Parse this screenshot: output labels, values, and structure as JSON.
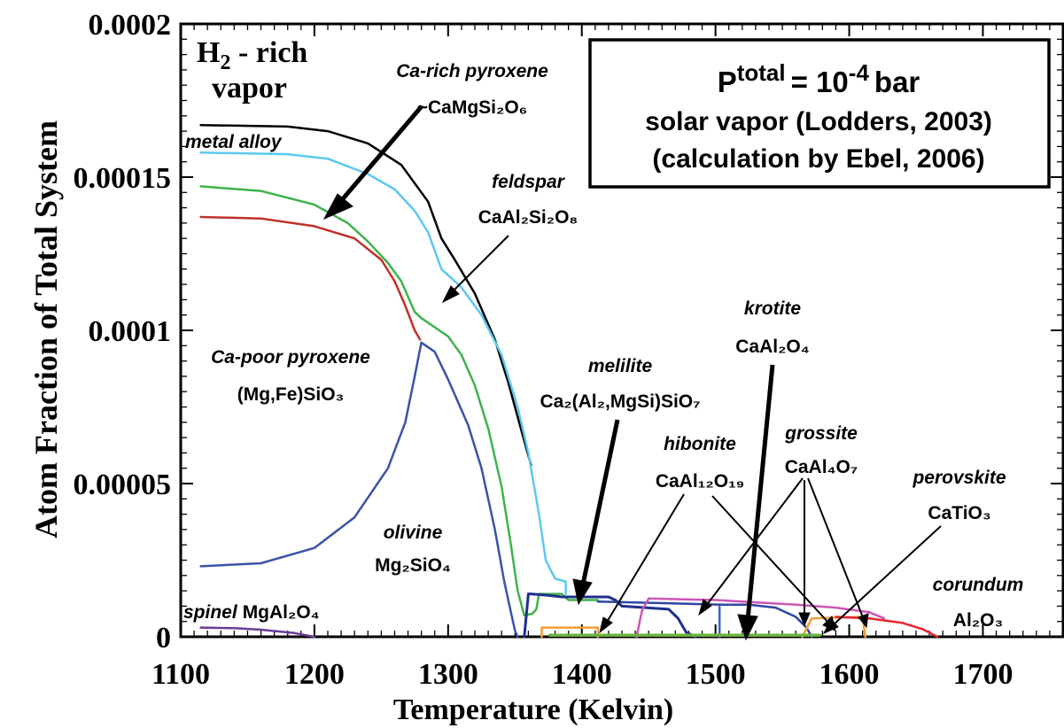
{
  "chart_data": {
    "type": "line",
    "xlabel": "Temperature (Kelvin)",
    "ylabel": "Atom Fraction of Total System",
    "xlim": [
      1100,
      1760
    ],
    "ylim": [
      0,
      0.0002
    ],
    "xticks": [
      "1100",
      "1200",
      "1300",
      "1400",
      "1500",
      "1600",
      "1700"
    ],
    "yticks": [
      "0",
      "0.00005",
      "0.0001",
      "0.00015",
      "0.0002"
    ],
    "grid": false,
    "box": {
      "line1_base": "P",
      "line1_sup": "total",
      "line1_eq": "= 10",
      "line1_exp": "-4",
      "line1_unit": "bar",
      "line2": "solar vapor  (Lodders, 2003)",
      "line3": "(calculation by Ebel, 2006)"
    },
    "vapor_label": {
      "h": "H",
      "sub": "2",
      "rest": " - rich",
      "line2": "vapor"
    },
    "labels": {
      "metal_alloy": "metal alloy",
      "ca_rich_name": "Ca-rich pyroxene",
      "ca_rich_formula": "~CaMgSi₂O₆",
      "feldspar_name": "feldspar",
      "feldspar_formula": "CaAl₂Si₂O₈",
      "ca_poor_name": "Ca-poor pyroxene",
      "ca_poor_formula": "(Mg,Fe)SiO₃",
      "olivine_name": "olivine",
      "olivine_formula": "Mg₂SiO₄",
      "spinel_name": "spinel",
      "spinel_formula": "MgAl₂O₄",
      "melilite_name": "melilite",
      "melilite_formula": "Ca₂(Al₂,MgSi)SiO₇",
      "krotite_name": "krotite",
      "krotite_formula": "CaAl₂O₄",
      "hibonite_name": "hibonite",
      "hibonite_formula": "CaAl₁₂O₁₉",
      "grossite_name": "grossite",
      "grossite_formula": "CaAl₄O₇",
      "perovskite_name": "perovskite",
      "perovskite_formula": "CaTiO₃",
      "corundum_name": "corundum",
      "corundum_formula": "Al₂O₃"
    },
    "series": [
      {
        "color": "#000000",
        "width": 2.5,
        "points": [
          [
            1115,
            0.000167
          ],
          [
            1180,
            0.0001665
          ],
          [
            1210,
            0.000165
          ],
          [
            1240,
            0.000161
          ],
          [
            1265,
            0.000154
          ],
          [
            1285,
            0.000142
          ],
          [
            1295,
            0.00013
          ],
          [
            1305,
            0.000123
          ],
          [
            1320,
            0.000112
          ],
          [
            1335,
            9.7e-05
          ],
          [
            1345,
            8.3e-05
          ],
          [
            1355,
            6.7e-05
          ],
          [
            1362,
            5.6e-05
          ]
        ]
      },
      {
        "color": "#5bc8f0",
        "width": 2.5,
        "points": [
          [
            1115,
            0.000158
          ],
          [
            1180,
            0.0001575
          ],
          [
            1210,
            0.000156
          ],
          [
            1240,
            0.000151
          ],
          [
            1260,
            0.000146
          ],
          [
            1275,
            0.000139
          ],
          [
            1285,
            0.000132
          ],
          [
            1295,
            0.00012
          ],
          [
            1310,
            0.000114
          ],
          [
            1325,
            0.000105
          ],
          [
            1340,
            9.2e-05
          ],
          [
            1352,
            7.5e-05
          ],
          [
            1360,
            6e-05
          ],
          [
            1368,
            4e-05
          ],
          [
            1373,
            2.5e-05
          ],
          [
            1380,
            1.9e-05
          ],
          [
            1388,
            1.8e-05
          ],
          [
            1388,
            1.4e-05
          ]
        ]
      },
      {
        "color": "#3db34a",
        "width": 2.5,
        "points": [
          [
            1115,
            0.000147
          ],
          [
            1160,
            0.0001455
          ],
          [
            1200,
            0.000141
          ],
          [
            1225,
            0.000135
          ],
          [
            1240,
            0.000129
          ],
          [
            1255,
            0.000122
          ],
          [
            1265,
            0.000116
          ],
          [
            1275,
            0.000106
          ],
          [
            1280,
            0.000104
          ],
          [
            1290,
            0.000101
          ],
          [
            1300,
            9.8e-05
          ],
          [
            1310,
            9.2e-05
          ],
          [
            1320,
            8.2e-05
          ],
          [
            1330,
            6.8e-05
          ],
          [
            1340,
            4.9e-05
          ],
          [
            1347,
            3e-05
          ],
          [
            1352,
            1.5e-05
          ],
          [
            1357,
            7e-06
          ],
          [
            1363,
            7.5e-06
          ],
          [
            1366,
            9e-06
          ],
          [
            1368,
            1.4e-05
          ],
          [
            1385,
            1.4e-05
          ],
          [
            1390,
            1.2e-05
          ],
          [
            1412,
            1.2e-05
          ]
        ]
      },
      {
        "color": "#c0302b",
        "width": 2.5,
        "points": [
          [
            1115,
            0.000137
          ],
          [
            1160,
            0.0001365
          ],
          [
            1200,
            0.000134
          ],
          [
            1230,
            0.00013
          ],
          [
            1250,
            0.000123
          ],
          [
            1260,
            0.000116
          ],
          [
            1268,
            0.000108
          ],
          [
            1275,
            0.0001
          ],
          [
            1279,
            9.7e-05
          ]
        ]
      },
      {
        "color": "#3a52a8",
        "width": 2.5,
        "points": [
          [
            1115,
            2.3e-05
          ],
          [
            1160,
            2.4e-05
          ],
          [
            1200,
            2.9e-05
          ],
          [
            1230,
            3.9e-05
          ],
          [
            1255,
            5.5e-05
          ],
          [
            1268,
            7e-05
          ],
          [
            1275,
            8.5e-05
          ],
          [
            1280,
            9.6e-05
          ],
          [
            1290,
            9.3e-05
          ],
          [
            1300,
            8.4e-05
          ],
          [
            1315,
            6.9e-05
          ],
          [
            1325,
            5.5e-05
          ],
          [
            1335,
            3.5e-05
          ],
          [
            1342,
            1.8e-05
          ],
          [
            1347,
            8e-06
          ],
          [
            1350,
            2e-06
          ],
          [
            1352,
            0
          ]
        ]
      },
      {
        "color": "#6a3d9a",
        "width": 2.5,
        "points": [
          [
            1115,
            3e-06
          ],
          [
            1140,
            2.8e-06
          ],
          [
            1160,
            2.3e-06
          ],
          [
            1185,
            1.2e-06
          ],
          [
            1200,
            0
          ]
        ]
      },
      {
        "color": "#1f2f8c",
        "width": 3,
        "points": [
          [
            1357,
            0
          ],
          [
            1360,
            1.4e-05
          ],
          [
            1362,
            1.4e-05
          ],
          [
            1375,
            1.35e-05
          ],
          [
            1385,
            1.3e-05
          ],
          [
            1420,
            1.3e-05
          ],
          [
            1425,
            1.2e-05
          ],
          [
            1430,
            1e-05
          ],
          [
            1465,
            9e-06
          ],
          [
            1472,
            6e-06
          ],
          [
            1478,
            1.5e-06
          ],
          [
            1485,
            0
          ]
        ]
      },
      {
        "color": "#2e46a0",
        "width": 2.5,
        "points": [
          [
            1412,
            1.15e-05
          ],
          [
            1505,
            1.05e-05
          ],
          [
            1525,
            1.05e-05
          ],
          [
            1545,
            9.5e-06
          ],
          [
            1560,
            6.5e-06
          ],
          [
            1568,
            3e-06
          ],
          [
            1572,
            0
          ]
        ]
      },
      {
        "color": "#cc55b5",
        "width": 2.5,
        "points": [
          [
            1441,
            0
          ],
          [
            1445,
            8.5e-06
          ],
          [
            1450,
            1.25e-05
          ],
          [
            1500,
            1.2e-05
          ],
          [
            1520,
            1.15e-05
          ],
          [
            1560,
            1.05e-05
          ],
          [
            1590,
            9.5e-06
          ],
          [
            1615,
            8e-06
          ],
          [
            1626,
            6e-06
          ]
        ]
      },
      {
        "color": "#3d5fc7",
        "width": 2.5,
        "points": [
          [
            1503,
            0
          ],
          [
            1503,
            9.8e-06
          ]
        ]
      },
      {
        "color": "#f59d34",
        "width": 2.5,
        "points": [
          [
            1370,
            0
          ],
          [
            1370,
            3e-06
          ],
          [
            1412,
            3e-06
          ],
          [
            1412,
            0
          ]
        ]
      },
      {
        "color": "#f59d34",
        "width": 2.5,
        "points": [
          [
            1565,
            0
          ],
          [
            1572,
            6e-06
          ],
          [
            1610,
            6.5e-06
          ],
          [
            1612,
            0
          ]
        ]
      },
      {
        "color": "#e8242b",
        "width": 2.5,
        "points": [
          [
            1590,
            6.5e-06
          ],
          [
            1615,
            6e-06
          ],
          [
            1640,
            4.5e-06
          ],
          [
            1655,
            2.5e-06
          ],
          [
            1666,
            0
          ]
        ]
      },
      {
        "color": "#6ab23f",
        "width": 3.5,
        "points": [
          [
            1376,
            5e-07
          ],
          [
            1578,
            5e-07
          ]
        ]
      }
    ]
  }
}
